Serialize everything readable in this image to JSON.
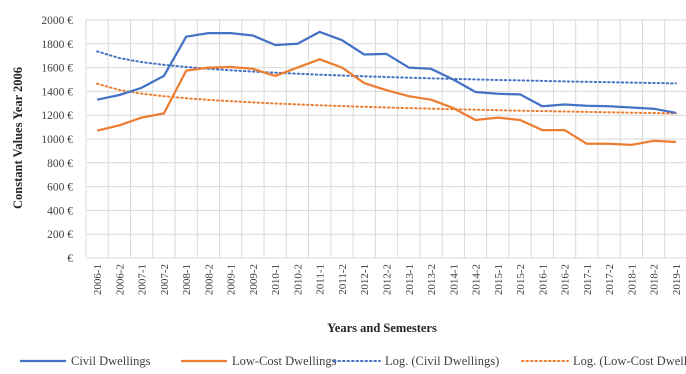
{
  "chart_data": {
    "type": "line",
    "xlabel": "Years and Semesters",
    "ylabel": "Constant Values Year 2006",
    "ylim": [
      0,
      2000
    ],
    "ytick_step": 200,
    "ytick_suffix": " €",
    "grid": true,
    "legend_position": "bottom",
    "categories": [
      "2006-1",
      "2006-2",
      "2007-1",
      "2007-2",
      "2008-1",
      "2008-2",
      "2009-1",
      "2009-2",
      "2010-1",
      "2010-2",
      "2011-1",
      "2011-2",
      "2012-1",
      "2012-2",
      "2013-1",
      "2013-2",
      "2014-1",
      "2014-2",
      "2015-1",
      "2015-2",
      "2016-1",
      "2016-2",
      "2017-1",
      "2017-2",
      "2018-1",
      "2018-2",
      "2019-1"
    ],
    "series": [
      {
        "name": "Civil Dwellings",
        "color": "#4472c4",
        "style": "solid",
        "values": [
          1330,
          1370,
          1430,
          1530,
          1860,
          1890,
          1890,
          1870,
          1790,
          1800,
          1900,
          1830,
          1710,
          1715,
          1600,
          1590,
          1500,
          1395,
          1380,
          1375,
          1275,
          1290,
          1280,
          1275,
          1265,
          1255,
          1220
        ]
      },
      {
        "name": "Low-Cost Dwellings",
        "color": "#ed7d31",
        "style": "solid",
        "values": [
          1070,
          1115,
          1180,
          1215,
          1575,
          1600,
          1605,
          1590,
          1530,
          1600,
          1670,
          1600,
          1470,
          1410,
          1360,
          1330,
          1260,
          1160,
          1180,
          1160,
          1075,
          1075,
          960,
          960,
          950,
          985,
          975
        ]
      },
      {
        "name": "Log. (Civil Dwellings)",
        "color": "#4472c4",
        "style": "dotted",
        "trend_of": 0
      },
      {
        "name": "Log. (Low-Cost Dwellings)",
        "color": "#ed7d31",
        "style": "dotted",
        "trend_of": 1
      }
    ]
  }
}
